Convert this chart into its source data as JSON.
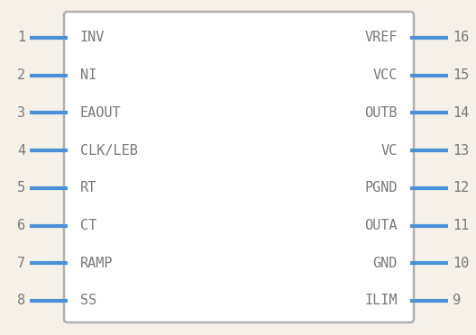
{
  "background_color": "#f5f0e8",
  "box_edge_color": "#b0b0b0",
  "box_fill_color": "#ffffff",
  "pin_color": "#4a90d9",
  "text_color": "#7a7a7a",
  "pin_num_color": "#7a7a7a",
  "left_pins": [
    {
      "num": 1,
      "name": "INV"
    },
    {
      "num": 2,
      "name": "NI"
    },
    {
      "num": 3,
      "name": "EAOUT"
    },
    {
      "num": 4,
      "name": "CLK/LEB"
    },
    {
      "num": 5,
      "name": "RT"
    },
    {
      "num": 6,
      "name": "CT"
    },
    {
      "num": 7,
      "name": "RAMP"
    },
    {
      "num": 8,
      "name": "SS"
    }
  ],
  "right_pins": [
    {
      "num": 16,
      "name": "VREF"
    },
    {
      "num": 15,
      "name": "VCC"
    },
    {
      "num": 14,
      "name": "OUTB"
    },
    {
      "num": 13,
      "name": "VC"
    },
    {
      "num": 12,
      "name": "PGND"
    },
    {
      "num": 11,
      "name": "OUTA"
    },
    {
      "num": 10,
      "name": "GND"
    },
    {
      "num": 9,
      "name": "ILIM"
    }
  ],
  "fig_w": 5.28,
  "fig_h": 3.72,
  "dpi": 100
}
